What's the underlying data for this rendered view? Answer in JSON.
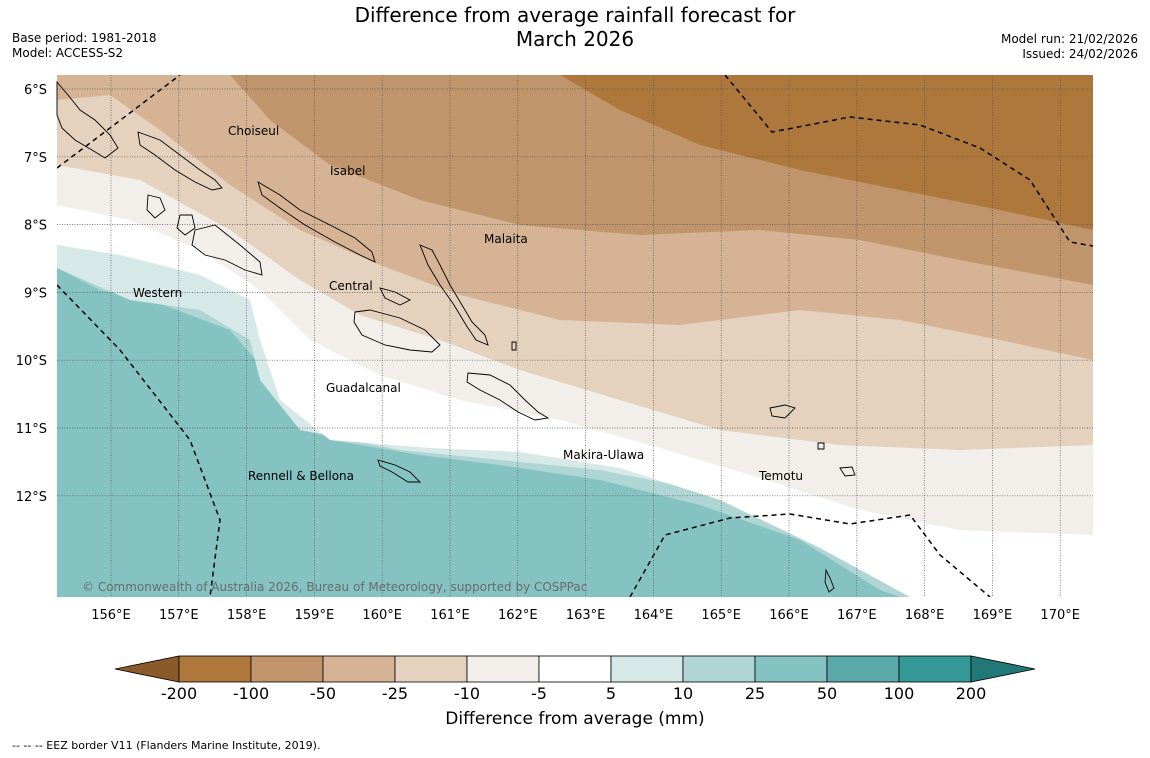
{
  "title": {
    "line1": "Difference from average rainfall forecast for",
    "line2": "March 2026"
  },
  "meta_left": {
    "base_period": "Base period: 1981-2018",
    "model": "Model: ACCESS-S2"
  },
  "meta_right": {
    "model_run": "Model run: 21/02/2026",
    "issued": "Issued: 24/02/2026"
  },
  "map": {
    "lat_labels": [
      "6°S",
      "7°S",
      "8°S",
      "9°S",
      "10°S",
      "11°S",
      "12°S"
    ],
    "lon_labels": [
      "156°E",
      "157°E",
      "158°E",
      "159°E",
      "160°E",
      "161°E",
      "162°E",
      "163°E",
      "164°E",
      "165°E",
      "166°E",
      "167°E",
      "168°E",
      "169°E",
      "170°E"
    ],
    "provinces": [
      "Choiseul",
      "Isabel",
      "Malaita",
      "Western",
      "Central",
      "Guadalcanal",
      "Makira-Ulawa",
      "Rennell & Bellona",
      "Temotu"
    ],
    "copyright": "© Commonwealth of Australia 2026, Bureau of Meteorology, supported by COSPPac"
  },
  "colorbar": {
    "bins": [
      {
        "color": "#8b5a2b"
      },
      {
        "color": "#ae783d"
      },
      {
        "color": "#c0956b"
      },
      {
        "color": "#d5b394"
      },
      {
        "color": "#e4d1be"
      },
      {
        "color": "#f2eee9"
      },
      {
        "color": "#ffffff"
      },
      {
        "color": "#d6e9e8"
      },
      {
        "color": "#afd5d5"
      },
      {
        "color": "#85c3c2"
      },
      {
        "color": "#5aa9a9"
      },
      {
        "color": "#35999a"
      },
      {
        "color": "#227777"
      }
    ],
    "tick_labels": [
      "-200",
      "-100",
      "-50",
      "-25",
      "-10",
      "-5",
      "5",
      "10",
      "25",
      "50",
      "100",
      "200"
    ],
    "title": "Difference from average (mm)"
  },
  "eez_note": "--  --  -- EEZ border V11 (Flanders Marine Institute, 2019)."
}
